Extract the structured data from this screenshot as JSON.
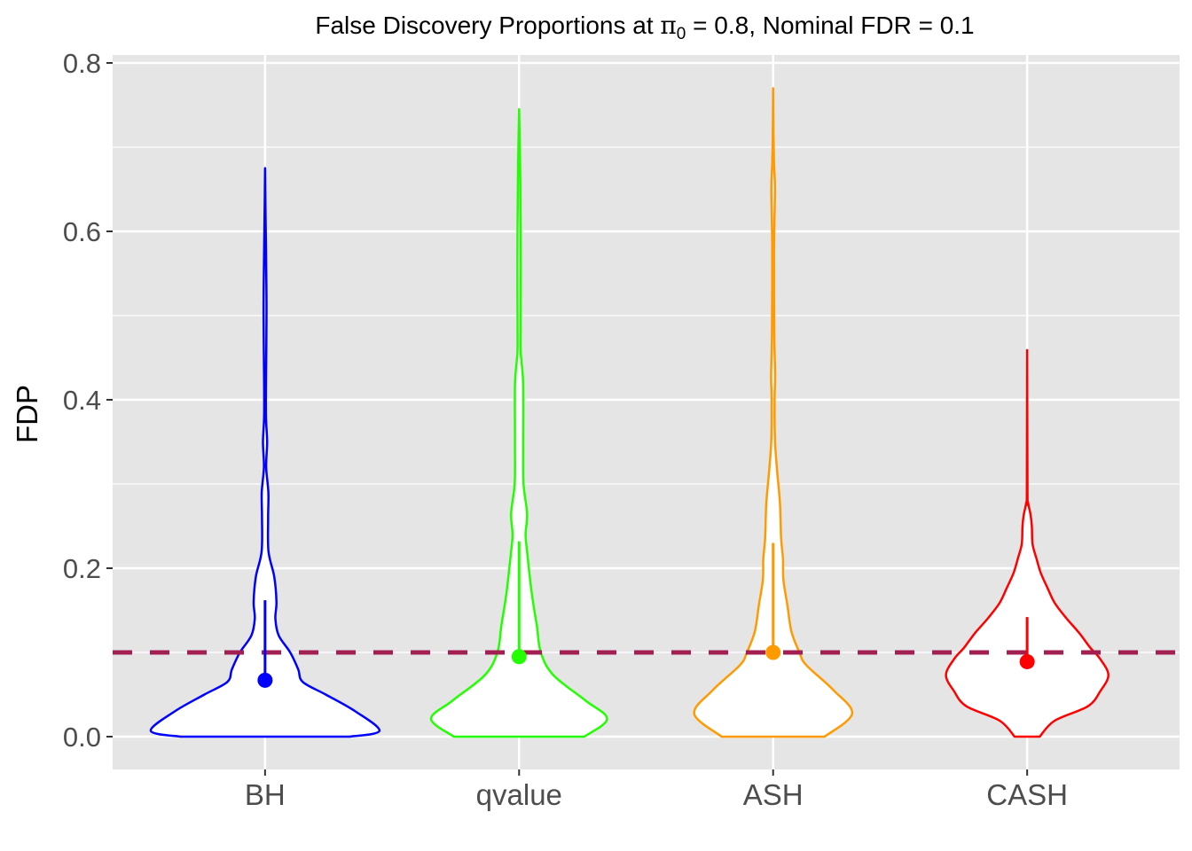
{
  "chart_data": {
    "type": "violin",
    "title_parts": {
      "before": "False Discovery Proportions at ",
      "symbol": "π",
      "subscript": "0",
      "after": " = 0.8, Nominal FDR = 0.1"
    },
    "xlabel": "",
    "ylabel": "FDP",
    "ylim": [
      -0.04,
      0.84
    ],
    "yticks": [
      0.0,
      0.2,
      0.4,
      0.6,
      0.8
    ],
    "ytick_labels": [
      "0.0",
      "0.2",
      "0.4",
      "0.6",
      "0.8"
    ],
    "grid": true,
    "reference_line": {
      "y": 0.1,
      "style": "dashed",
      "color": "#A31F52"
    },
    "categories": [
      "BH",
      "qvalue",
      "ASH",
      "CASH"
    ],
    "series": [
      {
        "category": "BH",
        "color": "#0000FF",
        "point": 0.067,
        "segment_top": 0.162,
        "profile": [
          [
            0,
            0.74
          ],
          [
            0.007,
            1.0
          ],
          [
            0.03,
            0.79
          ],
          [
            0.05,
            0.53
          ],
          [
            0.065,
            0.33
          ],
          [
            0.08,
            0.29
          ],
          [
            0.1,
            0.22
          ],
          [
            0.12,
            0.12
          ],
          [
            0.14,
            0.09
          ],
          [
            0.16,
            0.1
          ],
          [
            0.19,
            0.08
          ],
          [
            0.22,
            0.03
          ],
          [
            0.26,
            0.027
          ],
          [
            0.29,
            0.029
          ],
          [
            0.32,
            0.01
          ],
          [
            0.35,
            0.018
          ],
          [
            0.38,
            0.008
          ],
          [
            0.42,
            0.008
          ],
          [
            0.5,
            0.013
          ],
          [
            0.56,
            0.01
          ],
          [
            0.62,
            0.004
          ],
          [
            0.675,
            0
          ]
        ]
      },
      {
        "category": "qvalue",
        "color": "#22FF00",
        "point": 0.095,
        "segment_top": 0.232,
        "profile": [
          [
            0,
            0.57
          ],
          [
            0.021,
            0.77
          ],
          [
            0.043,
            0.58
          ],
          [
            0.073,
            0.3
          ],
          [
            0.1,
            0.19
          ],
          [
            0.132,
            0.155
          ],
          [
            0.171,
            0.11
          ],
          [
            0.22,
            0.07
          ],
          [
            0.24,
            0.057
          ],
          [
            0.265,
            0.07
          ],
          [
            0.3,
            0.039
          ],
          [
            0.344,
            0.036
          ],
          [
            0.418,
            0.036
          ],
          [
            0.447,
            0.02
          ],
          [
            0.467,
            0.013
          ],
          [
            0.565,
            0.015
          ],
          [
            0.664,
            0.01
          ],
          [
            0.745,
            0
          ]
        ]
      },
      {
        "category": "ASH",
        "color": "#FF9A00",
        "point": 0.1,
        "segment_top": 0.23,
        "profile": [
          [
            0,
            0.45
          ],
          [
            0.027,
            0.69
          ],
          [
            0.055,
            0.53
          ],
          [
            0.085,
            0.29
          ],
          [
            0.1,
            0.23
          ],
          [
            0.125,
            0.16
          ],
          [
            0.156,
            0.125
          ],
          [
            0.186,
            0.09
          ],
          [
            0.211,
            0.086
          ],
          [
            0.236,
            0.07
          ],
          [
            0.277,
            0.06
          ],
          [
            0.317,
            0.034
          ],
          [
            0.353,
            0.016
          ],
          [
            0.403,
            0.013
          ],
          [
            0.428,
            0.018
          ],
          [
            0.479,
            0.01
          ],
          [
            0.58,
            0.008
          ],
          [
            0.65,
            0.016
          ],
          [
            0.68,
            0.008
          ],
          [
            0.716,
            0.003
          ],
          [
            0.77,
            0
          ]
        ]
      },
      {
        "category": "CASH",
        "color": "#FF0000",
        "point": 0.089,
        "segment_top": 0.142,
        "profile": [
          [
            0,
            0.11
          ],
          [
            0.019,
            0.24
          ],
          [
            0.036,
            0.53
          ],
          [
            0.054,
            0.64
          ],
          [
            0.073,
            0.71
          ],
          [
            0.092,
            0.64
          ],
          [
            0.106,
            0.55
          ],
          [
            0.124,
            0.45
          ],
          [
            0.141,
            0.34
          ],
          [
            0.159,
            0.24
          ],
          [
            0.176,
            0.18
          ],
          [
            0.194,
            0.12
          ],
          [
            0.212,
            0.08
          ],
          [
            0.229,
            0.047
          ],
          [
            0.25,
            0.041
          ],
          [
            0.264,
            0.029
          ],
          [
            0.278,
            0.008
          ],
          [
            0.292,
            0.003
          ],
          [
            0.459,
            0
          ]
        ]
      }
    ]
  }
}
